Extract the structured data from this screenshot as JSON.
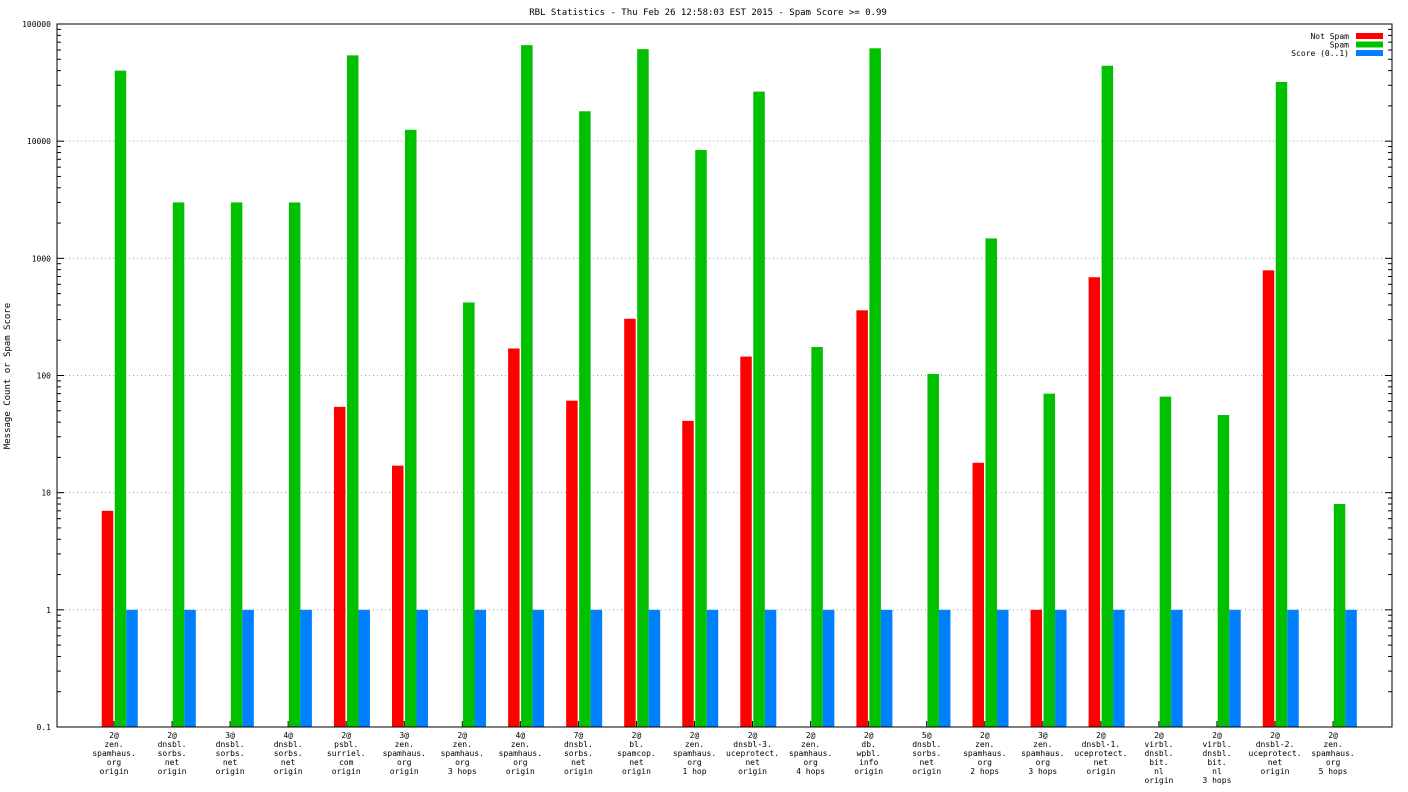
{
  "chart_data": {
    "type": "bar",
    "title": "RBL Statistics - Thu Feb 26 12:58:03 EST 2015 - Spam Score >= 0.99",
    "ylabel": "Message Count or Spam Score",
    "xlabel": "",
    "yscale": "log",
    "ylim": [
      0.1,
      100000
    ],
    "y_ticks": [
      {
        "value": 0.1,
        "label": "0.1"
      },
      {
        "value": 1,
        "label": "1"
      },
      {
        "value": 10,
        "label": "10"
      },
      {
        "value": 100,
        "label": "100"
      },
      {
        "value": 1000,
        "label": "1000"
      },
      {
        "value": 10000,
        "label": "10000"
      },
      {
        "value": 100000,
        "label": "100000"
      }
    ],
    "grid": true,
    "legend_position": "top-right",
    "categories": [
      [
        "2@",
        "zen.",
        "spamhaus.",
        "org",
        "origin"
      ],
      [
        "2@",
        "dnsbl.",
        "sorbs.",
        "net",
        "origin"
      ],
      [
        "3@",
        "dnsbl.",
        "sorbs.",
        "net",
        "origin"
      ],
      [
        "4@",
        "dnsbl.",
        "sorbs.",
        "net",
        "origin"
      ],
      [
        "2@",
        "psbl.",
        "surriel.",
        "com",
        "origin"
      ],
      [
        "3@",
        "zen.",
        "spamhaus.",
        "org",
        "origin"
      ],
      [
        "2@",
        "zen.",
        "spamhaus.",
        "org",
        "3 hops"
      ],
      [
        "4@",
        "zen.",
        "spamhaus.",
        "org",
        "origin"
      ],
      [
        "7@",
        "dnsbl.",
        "sorbs.",
        "net",
        "origin"
      ],
      [
        "2@",
        "bl.",
        "spamcop.",
        "net",
        "origin"
      ],
      [
        "2@",
        "zen.",
        "spamhaus.",
        "org",
        "1 hop"
      ],
      [
        "2@",
        "dnsbl-3.",
        "uceprotect.",
        "net",
        "origin"
      ],
      [
        "2@",
        "zen.",
        "spamhaus.",
        "org",
        "4 hops"
      ],
      [
        "2@",
        "db.",
        "wpbl.",
        "info",
        "origin"
      ],
      [
        "5@",
        "dnsbl.",
        "sorbs.",
        "net",
        "origin"
      ],
      [
        "2@",
        "zen.",
        "spamhaus.",
        "org",
        "2 hops"
      ],
      [
        "3@",
        "zen.",
        "spamhaus.",
        "org",
        "3 hops"
      ],
      [
        "2@",
        "dnsbl-1.",
        "uceprotect.",
        "net",
        "origin"
      ],
      [
        "2@",
        "virbl.",
        "dnsbl.",
        "bit.",
        "nl",
        "origin"
      ],
      [
        "2@",
        "virbl.",
        "dnsbl.",
        "bit.",
        "nl",
        "3 hops"
      ],
      [
        "2@",
        "dnsbl-2.",
        "uceprotect.",
        "net",
        "origin"
      ],
      [
        "2@",
        "zen.",
        "spamhaus.",
        "org",
        "5 hops"
      ]
    ],
    "series": [
      {
        "name": "Not Spam",
        "color": "#ff0000",
        "values": [
          7,
          null,
          null,
          null,
          54,
          17,
          null,
          170,
          61,
          305,
          41,
          145,
          null,
          360,
          null,
          18,
          1,
          690,
          null,
          null,
          790,
          null
        ]
      },
      {
        "name": "Spam",
        "color": "#00c000",
        "values": [
          40000,
          3000,
          3000,
          3000,
          54000,
          12500,
          420,
          66000,
          18000,
          61000,
          8400,
          26500,
          175,
          62000,
          103,
          1480,
          70,
          44000,
          66,
          46,
          32000,
          8
        ]
      },
      {
        "name": "Score (0..1)",
        "color": "#0080ff",
        "values": [
          1,
          1,
          1,
          1,
          1,
          1,
          1,
          1,
          1,
          1,
          1,
          1,
          1,
          1,
          1,
          1,
          1,
          1,
          1,
          1,
          1,
          1
        ]
      }
    ]
  }
}
